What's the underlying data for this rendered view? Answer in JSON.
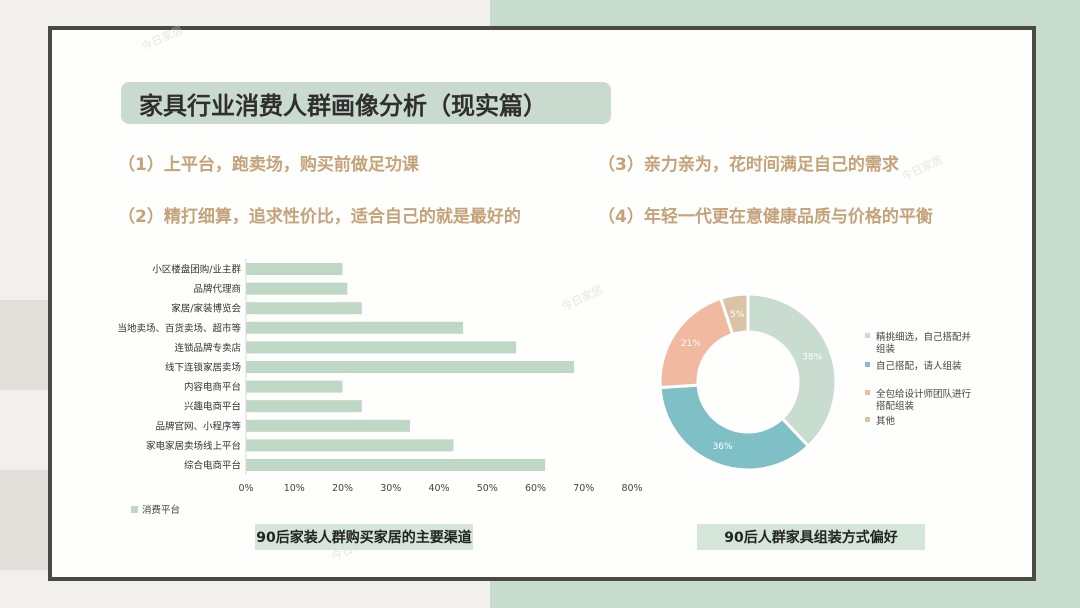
{
  "title": "家具行业消费人群画像分析（现实篇）",
  "points": [
    "（1）上平台，跑卖场，购买前做足功课",
    "（2）精打细算，追求性价比，适合自己的就是最好的",
    "（3）亲力亲为，花时间满足自己的需求",
    "（4）年轻一代更在意健康品质与价格的平衡"
  ],
  "colors": {
    "bar": "#bfd8c6",
    "title_bg": "#c9dbcf",
    "point_text": "#c4a37a",
    "donut": [
      "#c8dccf",
      "#7fc0c6",
      "#f1b9a0",
      "#dbc3a6"
    ]
  },
  "chart_data": [
    {
      "type": "bar",
      "orientation": "horizontal",
      "categories": [
        "小区楼盘团购/业主群",
        "品牌代理商",
        "家居/家装博览会",
        "当地卖场、百货卖场、超市等",
        "连锁品牌专卖店",
        "线下连锁家居卖场",
        "内容电商平台",
        "兴趣电商平台",
        "品牌官网、小程序等",
        "家电家居卖场线上平台",
        "综合电商平台"
      ],
      "series": [
        {
          "name": "消费平台",
          "values": [
            0.2,
            0.21,
            0.24,
            0.45,
            0.56,
            0.68,
            0.2,
            0.24,
            0.34,
            0.43,
            0.62
          ]
        }
      ],
      "xlim": [
        0,
        0.8
      ],
      "xticks": [
        "0%",
        "10%",
        "20%",
        "30%",
        "40%",
        "50%",
        "60%",
        "70%",
        "80%"
      ],
      "caption": "90后家装人群购买家居的主要渠道",
      "legend": "bottom-left",
      "grid": false
    },
    {
      "type": "pie",
      "variant": "donut",
      "labels": [
        "精挑细选，自己搭配并组装",
        "自己搭配，请人组装",
        "全包给设计师团队进行搭配组装",
        "其他"
      ],
      "values": [
        38,
        36,
        21,
        5
      ],
      "data_labels": [
        "38%",
        "36%",
        "21%",
        "5%"
      ],
      "caption": "90后人群家具组装方式偏好",
      "legend": "right"
    }
  ],
  "watermarks": [
    "今日家居"
  ]
}
